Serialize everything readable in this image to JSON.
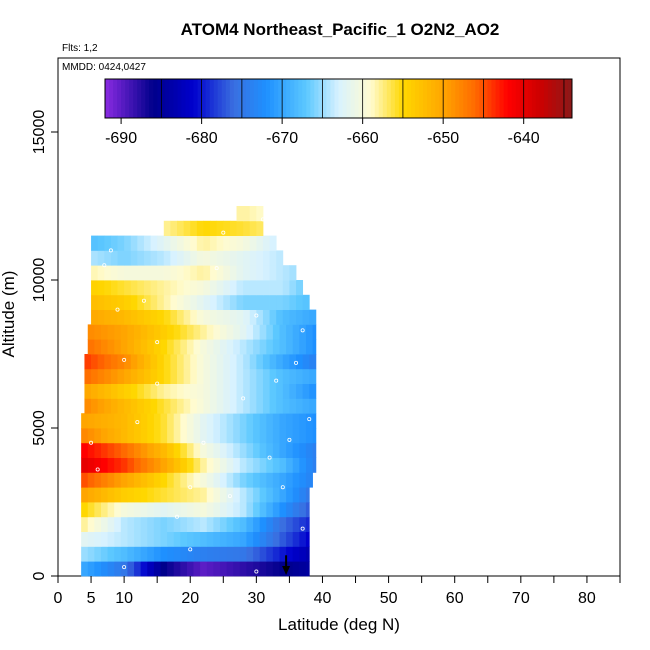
{
  "chart_data": {
    "type": "heatmap",
    "title": "ATOM4 Northeast_Pacific_1 O2N2_AO2",
    "annotations": {
      "flights": "Flts: 1,2",
      "dates": "MMDD: 0424,0427"
    },
    "xlabel": "Latitude (deg N)",
    "ylabel": "Altitude (m)",
    "xlim": [
      0,
      85
    ],
    "ylim": [
      0,
      17500
    ],
    "x_ticks": [
      0,
      5,
      10,
      20,
      30,
      40,
      50,
      60,
      70,
      80
    ],
    "x_minor_ticks": [
      15,
      25,
      35,
      45,
      55,
      65,
      75,
      85
    ],
    "y_ticks": [
      0,
      5000,
      10000,
      15000
    ],
    "colorbar": {
      "min": -692,
      "max": -634,
      "ticks": [
        -690,
        -680,
        -670,
        -660,
        -650,
        -640
      ],
      "tick_labels": [
        "-690",
        "-680",
        "-670",
        "-660",
        "-650",
        "-640"
      ],
      "boundaries": [
        -685,
        -680,
        -675,
        -670,
        -665,
        -660,
        -655,
        -650,
        -645,
        -640,
        -635
      ],
      "stops": [
        {
          "v": -692,
          "c": "#8a2be2"
        },
        {
          "v": -686,
          "c": "#00008b"
        },
        {
          "v": -681,
          "c": "#0000cd"
        },
        {
          "v": -676,
          "c": "#3a6fe0"
        },
        {
          "v": -672,
          "c": "#1e90ff"
        },
        {
          "v": -667,
          "c": "#5cc8ff"
        },
        {
          "v": -663,
          "c": "#d8f2ff"
        },
        {
          "v": -659,
          "c": "#fffbd0"
        },
        {
          "v": -655,
          "c": "#ffd700"
        },
        {
          "v": -650,
          "c": "#ffa500"
        },
        {
          "v": -646,
          "c": "#ff6a00"
        },
        {
          "v": -642,
          "c": "#ff0000"
        },
        {
          "v": -638,
          "c": "#cd0000"
        },
        {
          "v": -634,
          "c": "#8b1a1a"
        }
      ]
    },
    "profile": {
      "altitudes": [
        250,
        750,
        1250,
        1750,
        2250,
        2750,
        3250,
        3750,
        4250,
        4750,
        5250,
        5750,
        6250,
        6750,
        7250,
        7750,
        8250,
        8750,
        9250,
        9750,
        10250,
        10750,
        11250,
        11750,
        12250
      ],
      "lat_start": [
        3.5,
        3.5,
        3.5,
        3.5,
        3.5,
        3.5,
        3.5,
        3.5,
        3.5,
        3.5,
        3.5,
        4.0,
        4.0,
        4.0,
        4.0,
        4.5,
        4.5,
        5.0,
        5.0,
        5.0,
        5.0,
        5.0,
        5.0,
        16.0,
        27.0
      ],
      "lat_end": [
        38.0,
        38.0,
        38.0,
        38.0,
        38.0,
        38.0,
        38.5,
        39.0,
        39.0,
        39.0,
        39.0,
        39.0,
        39.0,
        39.0,
        39.0,
        39.0,
        39.0,
        39.0,
        38.0,
        37.0,
        36.0,
        34.0,
        33.0,
        31.0,
        31.0
      ],
      "lat_nodes": [
        4,
        10,
        16,
        22,
        28,
        34,
        39
      ],
      "values": [
        [
          -670,
          -675,
          -686,
          -690,
          -688,
          -686,
          -684
        ],
        [
          -665,
          -668,
          -672,
          -674,
          -675,
          -680,
          -684
        ],
        [
          -662,
          -664,
          -666,
          -668,
          -670,
          -677,
          -682
        ],
        [
          -658,
          -664,
          -666,
          -664,
          -668,
          -676,
          -680
        ],
        [
          -655,
          -660,
          -662,
          -660,
          -664,
          -672,
          -678
        ],
        [
          -650,
          -654,
          -656,
          -658,
          -664,
          -670,
          -676
        ],
        [
          -645,
          -650,
          -655,
          -660,
          -666,
          -670,
          -674
        ],
        [
          -640,
          -644,
          -650,
          -658,
          -664,
          -668,
          -674
        ],
        [
          -642,
          -646,
          -652,
          -660,
          -665,
          -670,
          -674
        ],
        [
          -648,
          -652,
          -656,
          -662,
          -666,
          -670,
          -672
        ],
        [
          -650,
          -652,
          -656,
          -662,
          -666,
          -670,
          -672
        ],
        [
          -648,
          -652,
          -656,
          -660,
          -664,
          -668,
          -670
        ],
        [
          -650,
          -654,
          -658,
          -660,
          -664,
          -668,
          -672
        ],
        [
          -646,
          -650,
          -655,
          -660,
          -664,
          -668,
          -670
        ],
        [
          -644,
          -648,
          -655,
          -660,
          -664,
          -670,
          -674
        ],
        [
          -646,
          -650,
          -655,
          -660,
          -664,
          -668,
          -672
        ],
        [
          -648,
          -650,
          -654,
          -658,
          -662,
          -668,
          -672
        ],
        [
          -650,
          -652,
          -655,
          -660,
          -662,
          -668,
          -670
        ],
        [
          -652,
          -654,
          -658,
          -662,
          -666,
          -666,
          -668
        ],
        [
          -654,
          -656,
          -658,
          -660,
          -664,
          -664,
          -668
        ],
        [
          -658,
          -660,
          -660,
          -658,
          -662,
          -664,
          -666
        ],
        [
          -664,
          -666,
          -664,
          -660,
          -662,
          -664,
          -668
        ],
        [
          -668,
          -666,
          -662,
          -658,
          -660,
          -664,
          -668
        ],
        [
          -660,
          -660,
          -658,
          -655,
          -656,
          -658,
          -660
        ],
        [
          -660,
          -660,
          -660,
          -660,
          -658,
          -660,
          -662
        ]
      ]
    },
    "sample_points": [
      [
        5,
        4500
      ],
      [
        6,
        3600
      ],
      [
        4,
        8000
      ],
      [
        7,
        10500
      ],
      [
        8,
        11000
      ],
      [
        9,
        9000
      ],
      [
        10,
        7300
      ],
      [
        12,
        5200
      ],
      [
        13,
        9300
      ],
      [
        15,
        6500
      ],
      [
        18,
        2000
      ],
      [
        20,
        3000
      ],
      [
        22,
        4500
      ],
      [
        24,
        10400
      ],
      [
        26,
        2700
      ],
      [
        28,
        6000
      ],
      [
        30,
        8800
      ],
      [
        32,
        4000
      ],
      [
        33,
        6600
      ],
      [
        34,
        3000
      ],
      [
        35,
        4600
      ],
      [
        36,
        7200
      ],
      [
        37,
        8300
      ],
      [
        37,
        1600
      ],
      [
        38,
        5300
      ],
      [
        39,
        9600
      ],
      [
        10,
        300
      ],
      [
        20,
        900
      ],
      [
        30,
        150
      ],
      [
        15,
        7900
      ],
      [
        25,
        11600
      ],
      [
        31,
        12050
      ]
    ],
    "arrow": {
      "lat": 34.5,
      "alt_top": 700,
      "alt_bottom": 0
    }
  }
}
